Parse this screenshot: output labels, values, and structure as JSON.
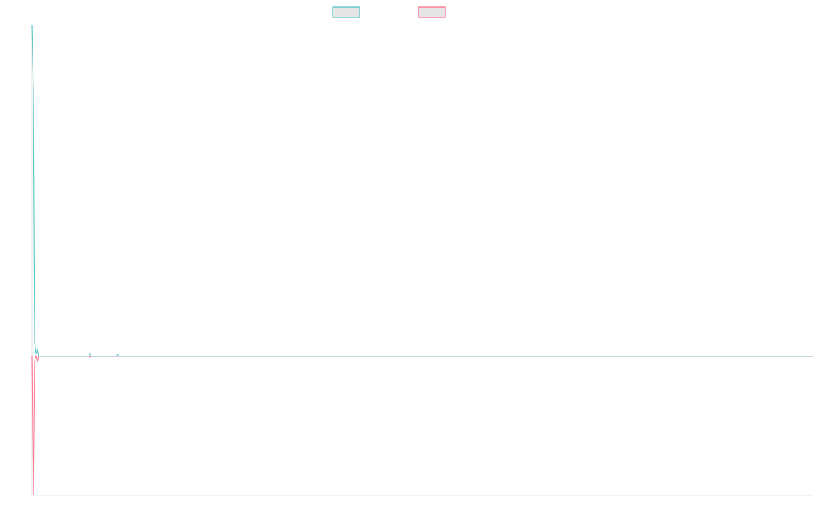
{
  "chart_data": {
    "type": "line",
    "title": "",
    "xlabel": "",
    "ylabel": "",
    "xlim": [
      0,
      564
    ],
    "ylim": [
      -1,
      2.38
    ],
    "grid": false,
    "legend_placement": "top",
    "series": [
      {
        "color": "#4bc0c0",
        "points": [
          [
            0,
            2.38
          ],
          [
            1,
            1.9
          ],
          [
            2,
            0.1
          ],
          [
            3,
            0.02
          ],
          [
            4,
            0.05
          ],
          [
            5,
            0
          ],
          [
            41,
            0
          ],
          [
            42,
            0.02
          ],
          [
            43,
            0
          ],
          [
            61,
            0
          ],
          [
            62,
            0.015
          ],
          [
            63,
            0
          ],
          [
            564,
            0
          ]
        ]
      },
      {
        "color": "#ff6384",
        "points": [
          [
            0,
            0
          ],
          [
            1,
            -1
          ],
          [
            2,
            -0.03
          ],
          [
            3,
            0
          ],
          [
            4,
            -0.04
          ],
          [
            5,
            0
          ],
          [
            41,
            0
          ],
          [
            42,
            -0.005
          ],
          [
            43,
            0
          ],
          [
            564,
            0
          ]
        ]
      }
    ]
  }
}
